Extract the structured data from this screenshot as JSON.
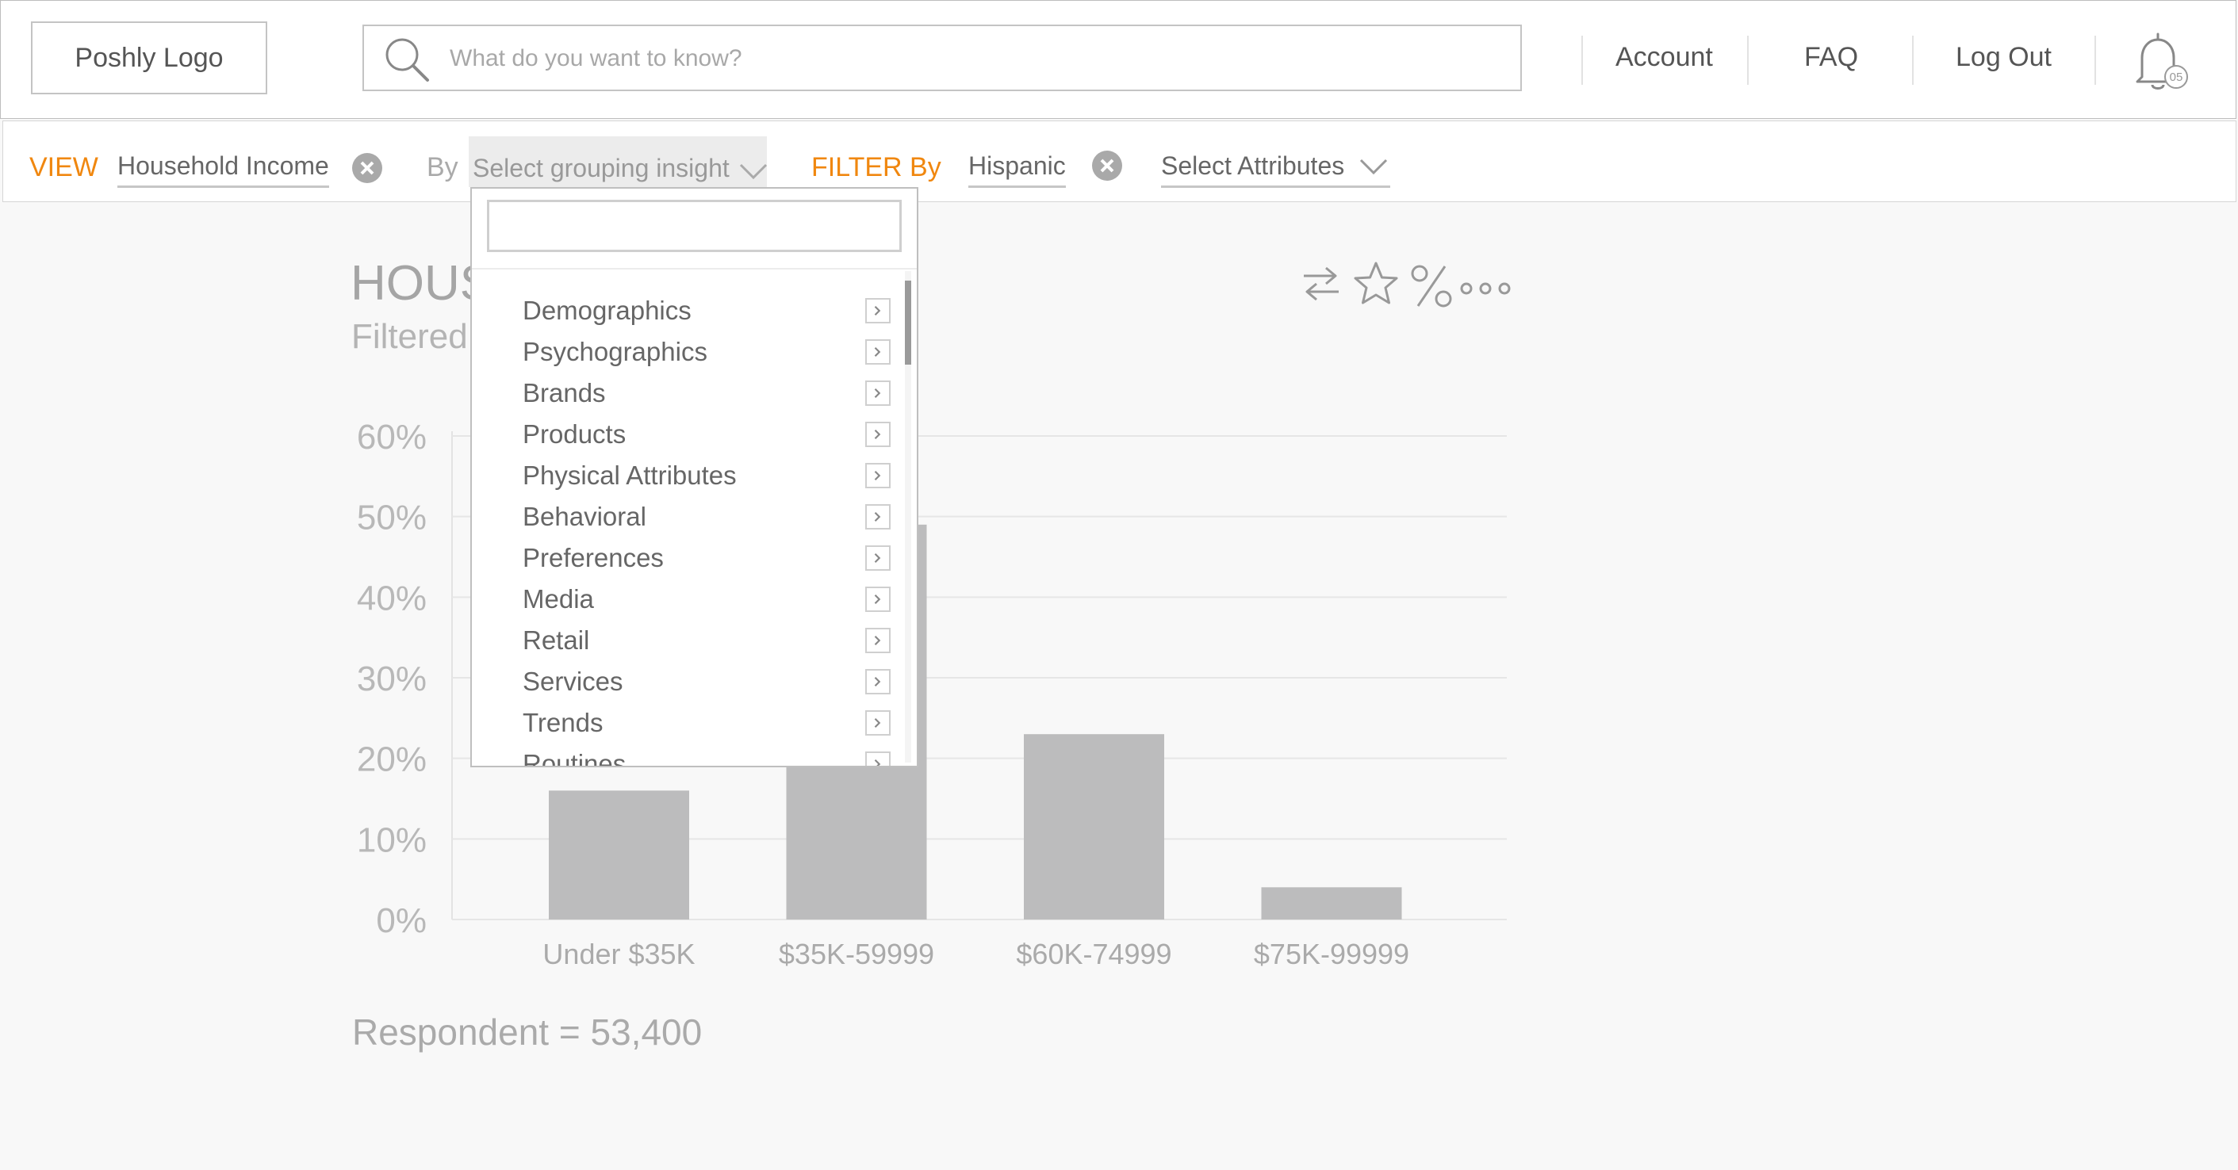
{
  "header": {
    "logo": "Poshly Logo",
    "search_placeholder": "What do you want to know?",
    "nav": {
      "account": "Account",
      "faq": "FAQ",
      "logout": "Log Out"
    },
    "notification_count": "05"
  },
  "filter_bar": {
    "view_label": "VIEW",
    "view_value": "Household Income",
    "by_label": "By",
    "grouping_placeholder": "Select grouping insight",
    "filter_label": "FILTER By",
    "filter_value": "Hispanic",
    "attributes_placeholder": "Select Attributes"
  },
  "dropdown": {
    "search_value": "",
    "items": [
      "Demographics",
      "Psychographics",
      "Brands",
      "Products",
      "Physical Attributes",
      "Behavioral",
      "Preferences",
      "Media",
      "Retail",
      "Services",
      "Trends",
      "Routines"
    ]
  },
  "main": {
    "title": "HOUS",
    "subtitle": "Filtered",
    "respondent": "Respondent = 53,400"
  },
  "colors": {
    "accent": "#f0870f",
    "bar": "#bcbcbd"
  },
  "chart_data": {
    "type": "bar",
    "categories": [
      "Under $35K",
      "$35K-59999",
      "$60K-74999",
      "$75K-99999"
    ],
    "values": [
      16,
      49,
      23,
      4
    ],
    "ylim": [
      0,
      60
    ],
    "yticks": [
      "0%",
      "10%",
      "20%",
      "30%",
      "40%",
      "50%",
      "60%"
    ],
    "grid": true
  }
}
